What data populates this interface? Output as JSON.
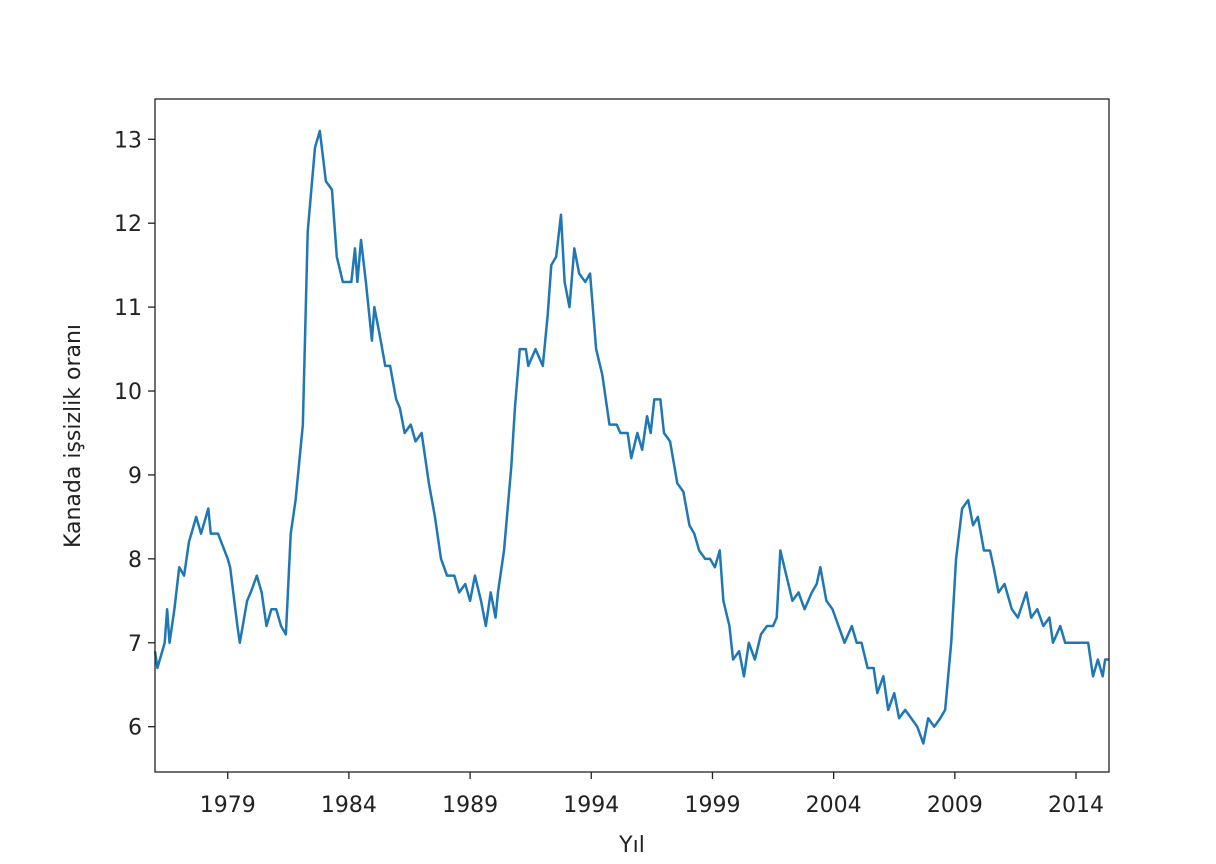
{
  "chart_data": {
    "type": "line",
    "x_label": "Yıl",
    "y_label": "Kanada işsizlik oranı",
    "xlim": [
      1976,
      2015.36
    ],
    "ylim": [
      5.46,
      13.48
    ],
    "xticks": [
      1979,
      1984,
      1989,
      1994,
      1999,
      2004,
      2009,
      2014
    ],
    "yticks": [
      6,
      7,
      8,
      9,
      10,
      11,
      12,
      13
    ],
    "x": [
      1976.0,
      1976.1,
      1976.4,
      1976.5,
      1976.6,
      1976.8,
      1977.0,
      1977.2,
      1977.4,
      1977.7,
      1977.9,
      1978.2,
      1978.3,
      1978.6,
      1979.0,
      1979.1,
      1979.4,
      1979.5,
      1979.8,
      1979.95,
      1980.2,
      1980.4,
      1980.6,
      1980.8,
      1981.0,
      1981.2,
      1981.4,
      1981.6,
      1981.8,
      1982.1,
      1982.3,
      1982.6,
      1982.8,
      1983.05,
      1983.3,
      1983.5,
      1983.75,
      1984.1,
      1984.25,
      1984.35,
      1984.5,
      1984.7,
      1984.95,
      1985.05,
      1985.25,
      1985.5,
      1985.7,
      1985.95,
      1986.1,
      1986.3,
      1986.55,
      1986.75,
      1987.0,
      1987.3,
      1987.55,
      1987.8,
      1988.05,
      1988.35,
      1988.55,
      1988.8,
      1989.0,
      1989.2,
      1989.45,
      1989.65,
      1989.85,
      1990.05,
      1990.15,
      1990.4,
      1990.7,
      1990.85,
      1991.05,
      1991.3,
      1991.4,
      1991.7,
      1992.0,
      1992.2,
      1992.35,
      1992.55,
      1992.75,
      1992.9,
      1993.1,
      1993.3,
      1993.5,
      1993.75,
      1993.95,
      1994.2,
      1994.45,
      1994.75,
      1995.05,
      1995.2,
      1995.5,
      1995.65,
      1995.9,
      1996.1,
      1996.3,
      1996.45,
      1996.6,
      1996.85,
      1997.0,
      1997.25,
      1997.55,
      1997.8,
      1998.05,
      1998.25,
      1998.45,
      1998.7,
      1998.9,
      1999.1,
      1999.3,
      1999.45,
      1999.7,
      1999.85,
      2000.1,
      2000.3,
      2000.5,
      2000.75,
      2001.0,
      2001.25,
      2001.5,
      2001.65,
      2001.8,
      2002.05,
      2002.3,
      2002.55,
      2002.8,
      2003.1,
      2003.3,
      2003.45,
      2003.7,
      2003.95,
      2004.2,
      2004.45,
      2004.75,
      2004.95,
      2005.15,
      2005.4,
      2005.65,
      2005.8,
      2006.05,
      2006.25,
      2006.5,
      2006.7,
      2006.95,
      2007.2,
      2007.45,
      2007.7,
      2007.9,
      2008.15,
      2008.4,
      2008.6,
      2008.85,
      2009.05,
      2009.3,
      2009.55,
      2009.75,
      2009.95,
      2010.2,
      2010.45,
      2010.6,
      2010.8,
      2011.05,
      2011.35,
      2011.6,
      2011.95,
      2012.15,
      2012.4,
      2012.65,
      2012.9,
      2013.05,
      2013.35,
      2013.55,
      2013.85,
      2014.15,
      2014.5,
      2014.7,
      2014.9,
      2015.1,
      2015.2,
      2015.35
    ],
    "series": [
      {
        "color": "#1f77b4",
        "values": [
          6.9,
          6.7,
          7.0,
          7.4,
          7.0,
          7.4,
          7.9,
          7.8,
          8.2,
          8.5,
          8.3,
          8.6,
          8.3,
          8.3,
          8.0,
          7.9,
          7.2,
          7.0,
          7.5,
          7.6,
          7.8,
          7.6,
          7.2,
          7.4,
          7.4,
          7.2,
          7.1,
          8.3,
          8.7,
          9.6,
          11.9,
          12.9,
          13.1,
          12.5,
          12.4,
          11.6,
          11.3,
          11.3,
          11.7,
          11.3,
          11.8,
          11.3,
          10.6,
          11.0,
          10.7,
          10.3,
          10.3,
          9.9,
          9.8,
          9.5,
          9.6,
          9.4,
          9.5,
          8.9,
          8.5,
          8.0,
          7.8,
          7.8,
          7.6,
          7.7,
          7.5,
          7.8,
          7.5,
          7.2,
          7.6,
          7.3,
          7.6,
          8.1,
          9.1,
          9.8,
          10.5,
          10.5,
          10.3,
          10.5,
          10.3,
          10.9,
          11.5,
          11.6,
          12.1,
          11.3,
          11.0,
          11.7,
          11.4,
          11.3,
          11.4,
          10.5,
          10.2,
          9.6,
          9.6,
          9.5,
          9.5,
          9.2,
          9.5,
          9.3,
          9.7,
          9.5,
          9.9,
          9.9,
          9.5,
          9.4,
          8.9,
          8.8,
          8.4,
          8.3,
          8.1,
          8.0,
          8.0,
          7.9,
          8.1,
          7.5,
          7.2,
          6.8,
          6.9,
          6.6,
          7.0,
          6.8,
          7.1,
          7.2,
          7.2,
          7.3,
          8.1,
          7.8,
          7.5,
          7.6,
          7.4,
          7.6,
          7.7,
          7.9,
          7.5,
          7.4,
          7.2,
          7.0,
          7.2,
          7.0,
          7.0,
          6.7,
          6.7,
          6.4,
          6.6,
          6.2,
          6.4,
          6.1,
          6.2,
          6.1,
          6.0,
          5.8,
          6.1,
          6.0,
          6.1,
          6.2,
          7.0,
          8.0,
          8.6,
          8.7,
          8.4,
          8.5,
          8.1,
          8.1,
          7.9,
          7.6,
          7.7,
          7.4,
          7.3,
          7.6,
          7.3,
          7.4,
          7.2,
          7.3,
          7.0,
          7.2,
          7.0,
          7.0,
          7.0,
          7.0,
          6.6,
          6.8,
          6.6,
          6.8,
          6.8
        ]
      }
    ]
  }
}
